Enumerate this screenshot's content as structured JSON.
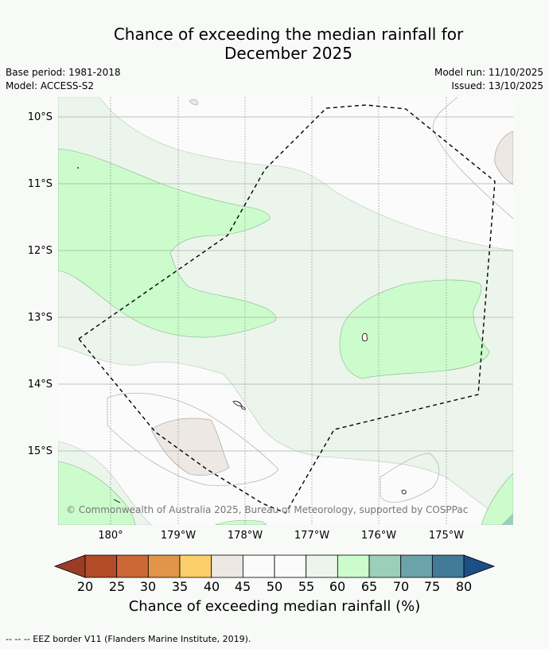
{
  "title": {
    "line1": "Chance of exceeding the median rainfall for",
    "line2": "December 2025"
  },
  "meta": {
    "base_period": "Base period: 1981-2018",
    "model": "Model: ACCESS-S2",
    "model_run": "Model run: 11/10/2025",
    "issued": "Issued: 13/10/2025"
  },
  "map": {
    "lat_labels": [
      "10°S",
      "11°S",
      "12°S",
      "13°S",
      "14°S",
      "15°S"
    ],
    "lon_labels": [
      "180°",
      "179°W",
      "178°W",
      "177°W",
      "176°W",
      "175°W"
    ],
    "copyright": "© Commonwealth of Australia 2025, Bureau of Meteorology, supported by COSPPac"
  },
  "colorbar": {
    "title": "Chance of exceeding median rainfall (%)",
    "ticks": [
      "20",
      "25",
      "30",
      "35",
      "40",
      "45",
      "50",
      "55",
      "60",
      "65",
      "70",
      "75",
      "80"
    ],
    "colors": [
      "#b34a28",
      "#cc6835",
      "#e09548",
      "#fccf6a",
      "#ede8e4",
      "#fbfbfb",
      "#fbfbfb",
      "#ebf5eb",
      "#ccfccc",
      "#9ccfb9",
      "#6ca2a9",
      "#427a98"
    ],
    "under_color": "#9c3c26",
    "over_color": "#1c4f85"
  },
  "legend": {
    "footnote": "--  --  -- EEZ border V11 (Flanders Marine Institute, 2019)."
  }
}
